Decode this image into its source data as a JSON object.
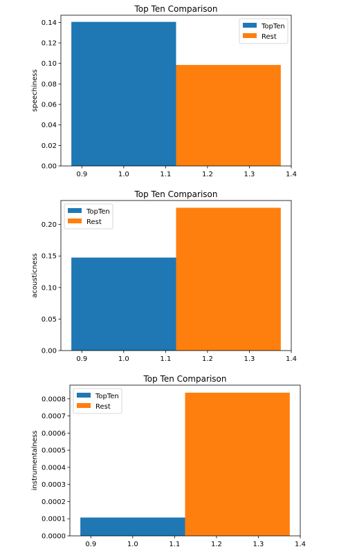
{
  "colors": {
    "topten": "#1f77b4",
    "rest": "#ff7f0e"
  },
  "chart_data": [
    {
      "type": "bar",
      "title": "Top Ten Comparison",
      "xlabel": "",
      "ylabel": "speechiness",
      "xlim": [
        0.85,
        1.4
      ],
      "ylim": [
        0,
        0.147
      ],
      "xticks": [
        "0.9",
        "1.0",
        "1.1",
        "1.2",
        "1.3",
        "1.4"
      ],
      "yticks": [
        "0.00",
        "0.02",
        "0.04",
        "0.06",
        "0.08",
        "0.10",
        "0.12",
        "0.14"
      ],
      "legend_position": "top-right",
      "series": [
        {
          "name": "TopTen",
          "x": 1.0,
          "width": 0.25,
          "value": 0.1405
        },
        {
          "name": "Rest",
          "x": 1.25,
          "width": 0.25,
          "value": 0.0985
        }
      ]
    },
    {
      "type": "bar",
      "title": "Top Ten Comparison",
      "xlabel": "",
      "ylabel": "acousticness",
      "xlim": [
        0.85,
        1.4
      ],
      "ylim": [
        0,
        0.238
      ],
      "xticks": [
        "0.9",
        "1.0",
        "1.1",
        "1.2",
        "1.3",
        "1.4"
      ],
      "yticks": [
        "0.00",
        "0.05",
        "0.10",
        "0.15",
        "0.20"
      ],
      "legend_position": "top-left",
      "series": [
        {
          "name": "TopTen",
          "x": 1.0,
          "width": 0.25,
          "value": 0.1475
        },
        {
          "name": "Rest",
          "x": 1.25,
          "width": 0.25,
          "value": 0.2265
        }
      ]
    },
    {
      "type": "bar",
      "title": "Top Ten Comparison",
      "xlabel": "",
      "ylabel": "instrumentalness",
      "xlim": [
        0.85,
        1.4
      ],
      "ylim": [
        0,
        0.00088
      ],
      "xticks": [
        "0.9",
        "1.0",
        "1.1",
        "1.2",
        "1.3",
        "1.4"
      ],
      "yticks": [
        "0.0000",
        "0.0001",
        "0.0002",
        "0.0003",
        "0.0004",
        "0.0005",
        "0.0006",
        "0.0007",
        "0.0008"
      ],
      "legend_position": "top-left",
      "series": [
        {
          "name": "TopTen",
          "x": 1.0,
          "width": 0.25,
          "value": 0.000107
        },
        {
          "name": "Rest",
          "x": 1.25,
          "width": 0.25,
          "value": 0.000836
        }
      ]
    }
  ]
}
